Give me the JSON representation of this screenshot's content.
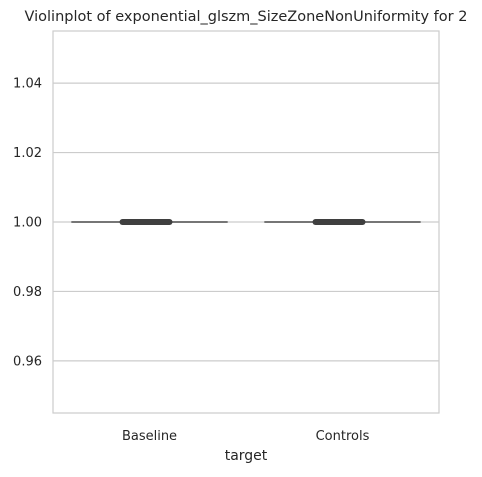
{
  "chart_data": {
    "type": "violin",
    "title": "Violinplot of exponential_glszm_SizeZoneNonUniformity for 2",
    "xlabel": "target",
    "ylabel": "",
    "categories": [
      "Baseline",
      "Controls"
    ],
    "values": [
      1.0,
      1.0
    ],
    "ylim": [
      0.945,
      1.055
    ],
    "yticks": [
      0.96,
      0.98,
      1.0,
      1.02,
      1.04
    ],
    "ytick_labels": [
      "0.96",
      "0.98",
      "1.00",
      "1.02",
      "1.04"
    ],
    "grid": "horizontal",
    "legend": "none",
    "colors": {
      "grid": "#cccccc",
      "frame": "#cccccc",
      "line": "#4d4d4d",
      "box": "#3f3f3f"
    }
  }
}
